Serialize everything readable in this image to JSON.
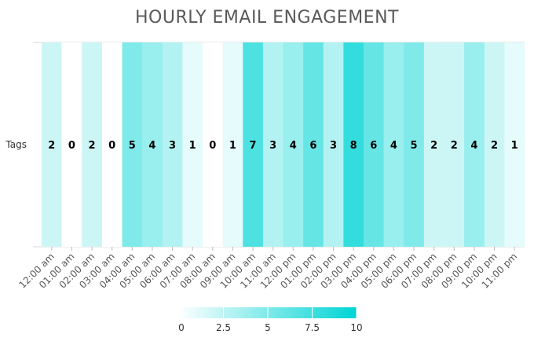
{
  "chart_data": {
    "type": "heatmap",
    "title": "HOURLY EMAIL ENGAGEMENT",
    "rows": [
      "Tags"
    ],
    "columns": [
      "12:00 am",
      "01:00 am",
      "02:00 am",
      "03:00 am",
      "04:00 am",
      "05:00 am",
      "06:00 am",
      "07:00 am",
      "08:00 am",
      "09:00 am",
      "10:00 am",
      "11:00 am",
      "12:00 pm",
      "01:00 pm",
      "02:00 pm",
      "03:00 pm",
      "04:00 pm",
      "05:00 pm",
      "06:00 pm",
      "07:00 pm",
      "08:00 pm",
      "09:00 pm",
      "10:00 pm",
      "11:00 pm"
    ],
    "values": [
      [
        2,
        0,
        2,
        0,
        5,
        4,
        3,
        1,
        0,
        1,
        7,
        3,
        4,
        6,
        3,
        8,
        6,
        4,
        5,
        2,
        2,
        4,
        2,
        1
      ]
    ],
    "color_scale": {
      "min": 0,
      "max": 10,
      "min_color": "#ffffff",
      "max_color": "#00d4d4"
    },
    "legend": {
      "position": "bottom",
      "ticks": [
        "0",
        "2.5",
        "5",
        "7.5",
        "10"
      ]
    },
    "grid": false
  }
}
